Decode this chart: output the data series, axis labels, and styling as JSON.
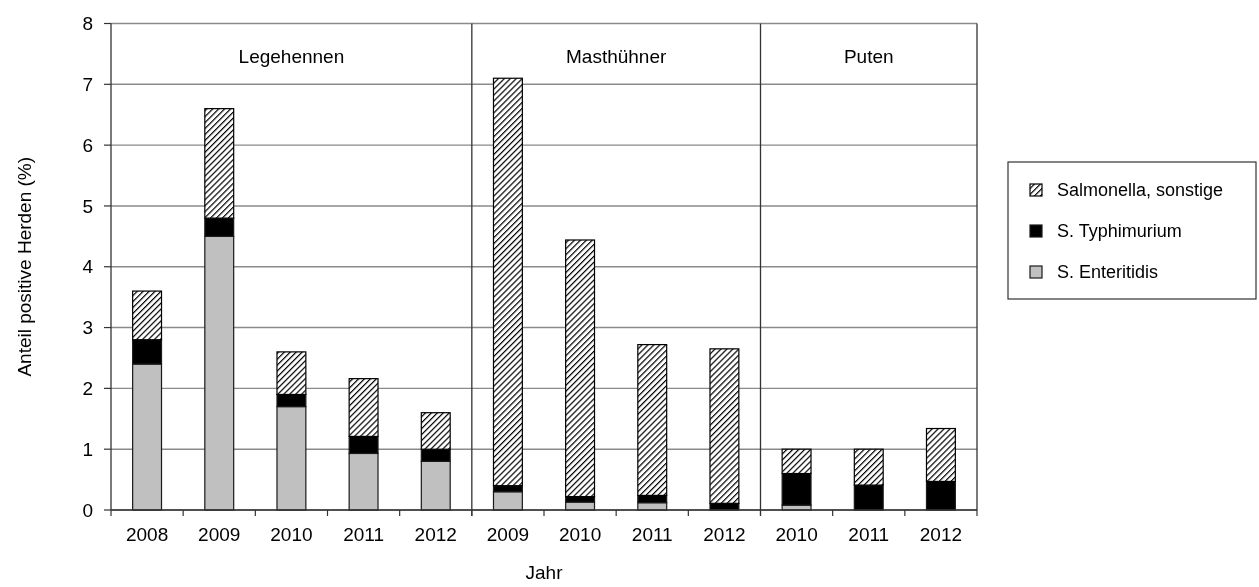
{
  "chart_data": [
    {
      "type": "bar",
      "title": "Legehennen",
      "ylabel": "Anteil positive Herden (%)",
      "categories": [
        "2008",
        "2009",
        "2010",
        "2011",
        "2012"
      ],
      "stacked": true,
      "ylim": [
        0,
        8
      ],
      "yticks": [
        0,
        1,
        2,
        3,
        4,
        5,
        6,
        7,
        8
      ],
      "grid": "y",
      "series": [
        {
          "color": "#c0c0c0",
          "values": [
            2.4,
            4.5,
            1.7,
            0.93,
            0.8
          ]
        },
        {
          "color": "#000000",
          "values": [
            0.4,
            0.3,
            0.2,
            0.28,
            0.2
          ]
        },
        {
          "color": "#000000",
          "values": [
            0.8,
            1.8,
            0.7,
            0.95,
            0.6
          ]
        }
      ]
    },
    {
      "type": "bar",
      "title": "Masthühner",
      "xlabel": "Jahr",
      "categories": [
        "2009",
        "2010",
        "2011",
        "2012"
      ],
      "stacked": true,
      "ylim": [
        0,
        8
      ],
      "yticks": [
        0,
        1,
        2,
        3,
        4,
        5,
        6,
        7,
        8
      ],
      "grid": "y",
      "tick_labels": "x",
      "series": [
        {
          "color": "#c0c0c0",
          "values": [
            0.3,
            0.13,
            0.12,
            0
          ]
        },
        {
          "color": "#000000",
          "values": [
            0.1,
            0.09,
            0.12,
            0.11
          ]
        },
        {
          "color": "#000000",
          "values": [
            6.7,
            4.22,
            2.48,
            2.54
          ]
        }
      ]
    },
    {
      "type": "bar",
      "title": "Puten",
      "categories": [
        "2010",
        "2011",
        "2012"
      ],
      "stacked": true,
      "ylim": [
        0,
        8
      ],
      "yticks": [
        0,
        1,
        2,
        3,
        4,
        5,
        6,
        7,
        8
      ],
      "grid": "y",
      "tick_labels": "x",
      "legend": "right",
      "series": [
        {
          "name": "S. Enteritidis",
          "color": "#c0c0c0",
          "values": [
            0.08,
            0,
            0
          ]
        },
        {
          "name": "S. Typhimurium",
          "color": "#000000",
          "values": [
            0.52,
            0.41,
            0.47
          ]
        },
        {
          "name": "Salmonella, sonstige",
          "color": "#000000",
          "values": [
            0.4,
            0.59,
            0.87
          ]
        }
      ]
    }
  ]
}
